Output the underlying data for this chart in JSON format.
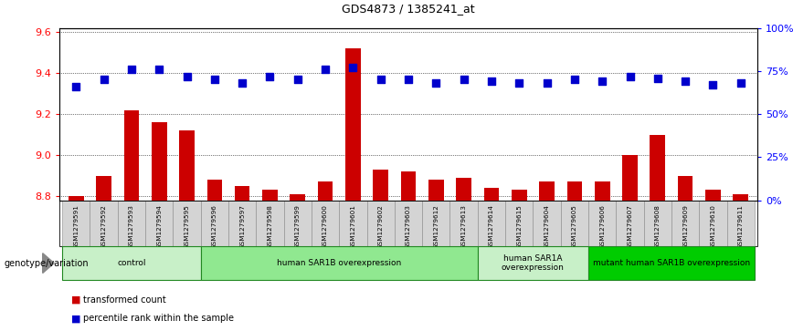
{
  "title": "GDS4873 / 1385241_at",
  "samples": [
    "GSM1279591",
    "GSM1279592",
    "GSM1279593",
    "GSM1279594",
    "GSM1279595",
    "GSM1279596",
    "GSM1279597",
    "GSM1279598",
    "GSM1279599",
    "GSM1279600",
    "GSM1279601",
    "GSM1279602",
    "GSM1279603",
    "GSM1279612",
    "GSM1279613",
    "GSM1279614",
    "GSM1279615",
    "GSM1279604",
    "GSM1279605",
    "GSM1279606",
    "GSM1279607",
    "GSM1279608",
    "GSM1279609",
    "GSM1279610",
    "GSM1279611"
  ],
  "transformed_counts": [
    8.8,
    8.9,
    9.22,
    9.16,
    9.12,
    8.88,
    8.85,
    8.83,
    8.81,
    8.87,
    9.52,
    8.93,
    8.92,
    8.88,
    8.89,
    8.84,
    8.83,
    8.87,
    8.87,
    8.87,
    9.0,
    9.1,
    8.9,
    8.83,
    8.81
  ],
  "percentile_ranks": [
    66,
    70,
    76,
    76,
    72,
    70,
    68,
    72,
    70,
    76,
    77,
    70,
    70,
    68,
    70,
    69,
    68,
    68,
    70,
    69,
    72,
    71,
    69,
    67,
    68
  ],
  "groups": [
    {
      "label": "control",
      "start": 0,
      "end": 4,
      "color": "#c8f0c8"
    },
    {
      "label": "human SAR1B overexpression",
      "start": 5,
      "end": 14,
      "color": "#90e890"
    },
    {
      "label": "human SAR1A\noverexpression",
      "start": 15,
      "end": 18,
      "color": "#c8f0c8"
    },
    {
      "label": "mutant human SAR1B overexpression",
      "start": 19,
      "end": 24,
      "color": "#00cc00"
    }
  ],
  "ylim_left": [
    8.78,
    9.62
  ],
  "ylim_right": [
    0,
    100
  ],
  "yticks_left": [
    8.8,
    9.0,
    9.2,
    9.4,
    9.6
  ],
  "yticks_right": [
    0,
    25,
    50,
    75,
    100
  ],
  "bar_color": "#cc0000",
  "dot_color": "#0000cc",
  "bar_width": 0.55,
  "dot_size": 28,
  "background_color": "#ffffff"
}
